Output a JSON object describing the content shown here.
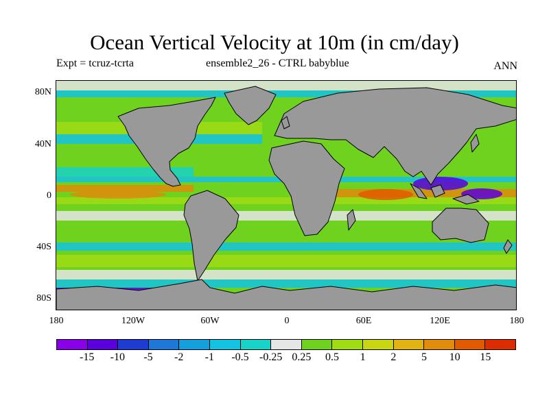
{
  "title": "Ocean Vertical Velocity at 10m (in cm/day)",
  "subtitle_left": "Expt = tcruz-tcrta",
  "subtitle_center": "ensemble2_26 - CTRL babyblue",
  "subtitle_right": "ANN",
  "lat_labels": [
    "80N",
    "40N",
    "0",
    "40S",
    "80S"
  ],
  "lon_labels": [
    "180",
    "120W",
    "60W",
    "0",
    "60E",
    "120E",
    "180"
  ],
  "colorbar": {
    "labels": [
      "-15",
      "-10",
      "-5",
      "-2",
      "-1",
      "-0.5",
      "-0.25",
      "0.25",
      "0.5",
      "1",
      "2",
      "5",
      "10",
      "15"
    ],
    "colors": [
      "#8a00e6",
      "#5a00dc",
      "#1e3cd2",
      "#1e78d7",
      "#14a0dc",
      "#14c3e1",
      "#19d2c8",
      "#e6e6e6",
      "#6ed21e",
      "#a0dc14",
      "#c8d614",
      "#e1b414",
      "#e18c0a",
      "#e15a00",
      "#dc2d00"
    ]
  },
  "map": {
    "land_color": "#999999",
    "missing_color": "#e6e6e6"
  }
}
